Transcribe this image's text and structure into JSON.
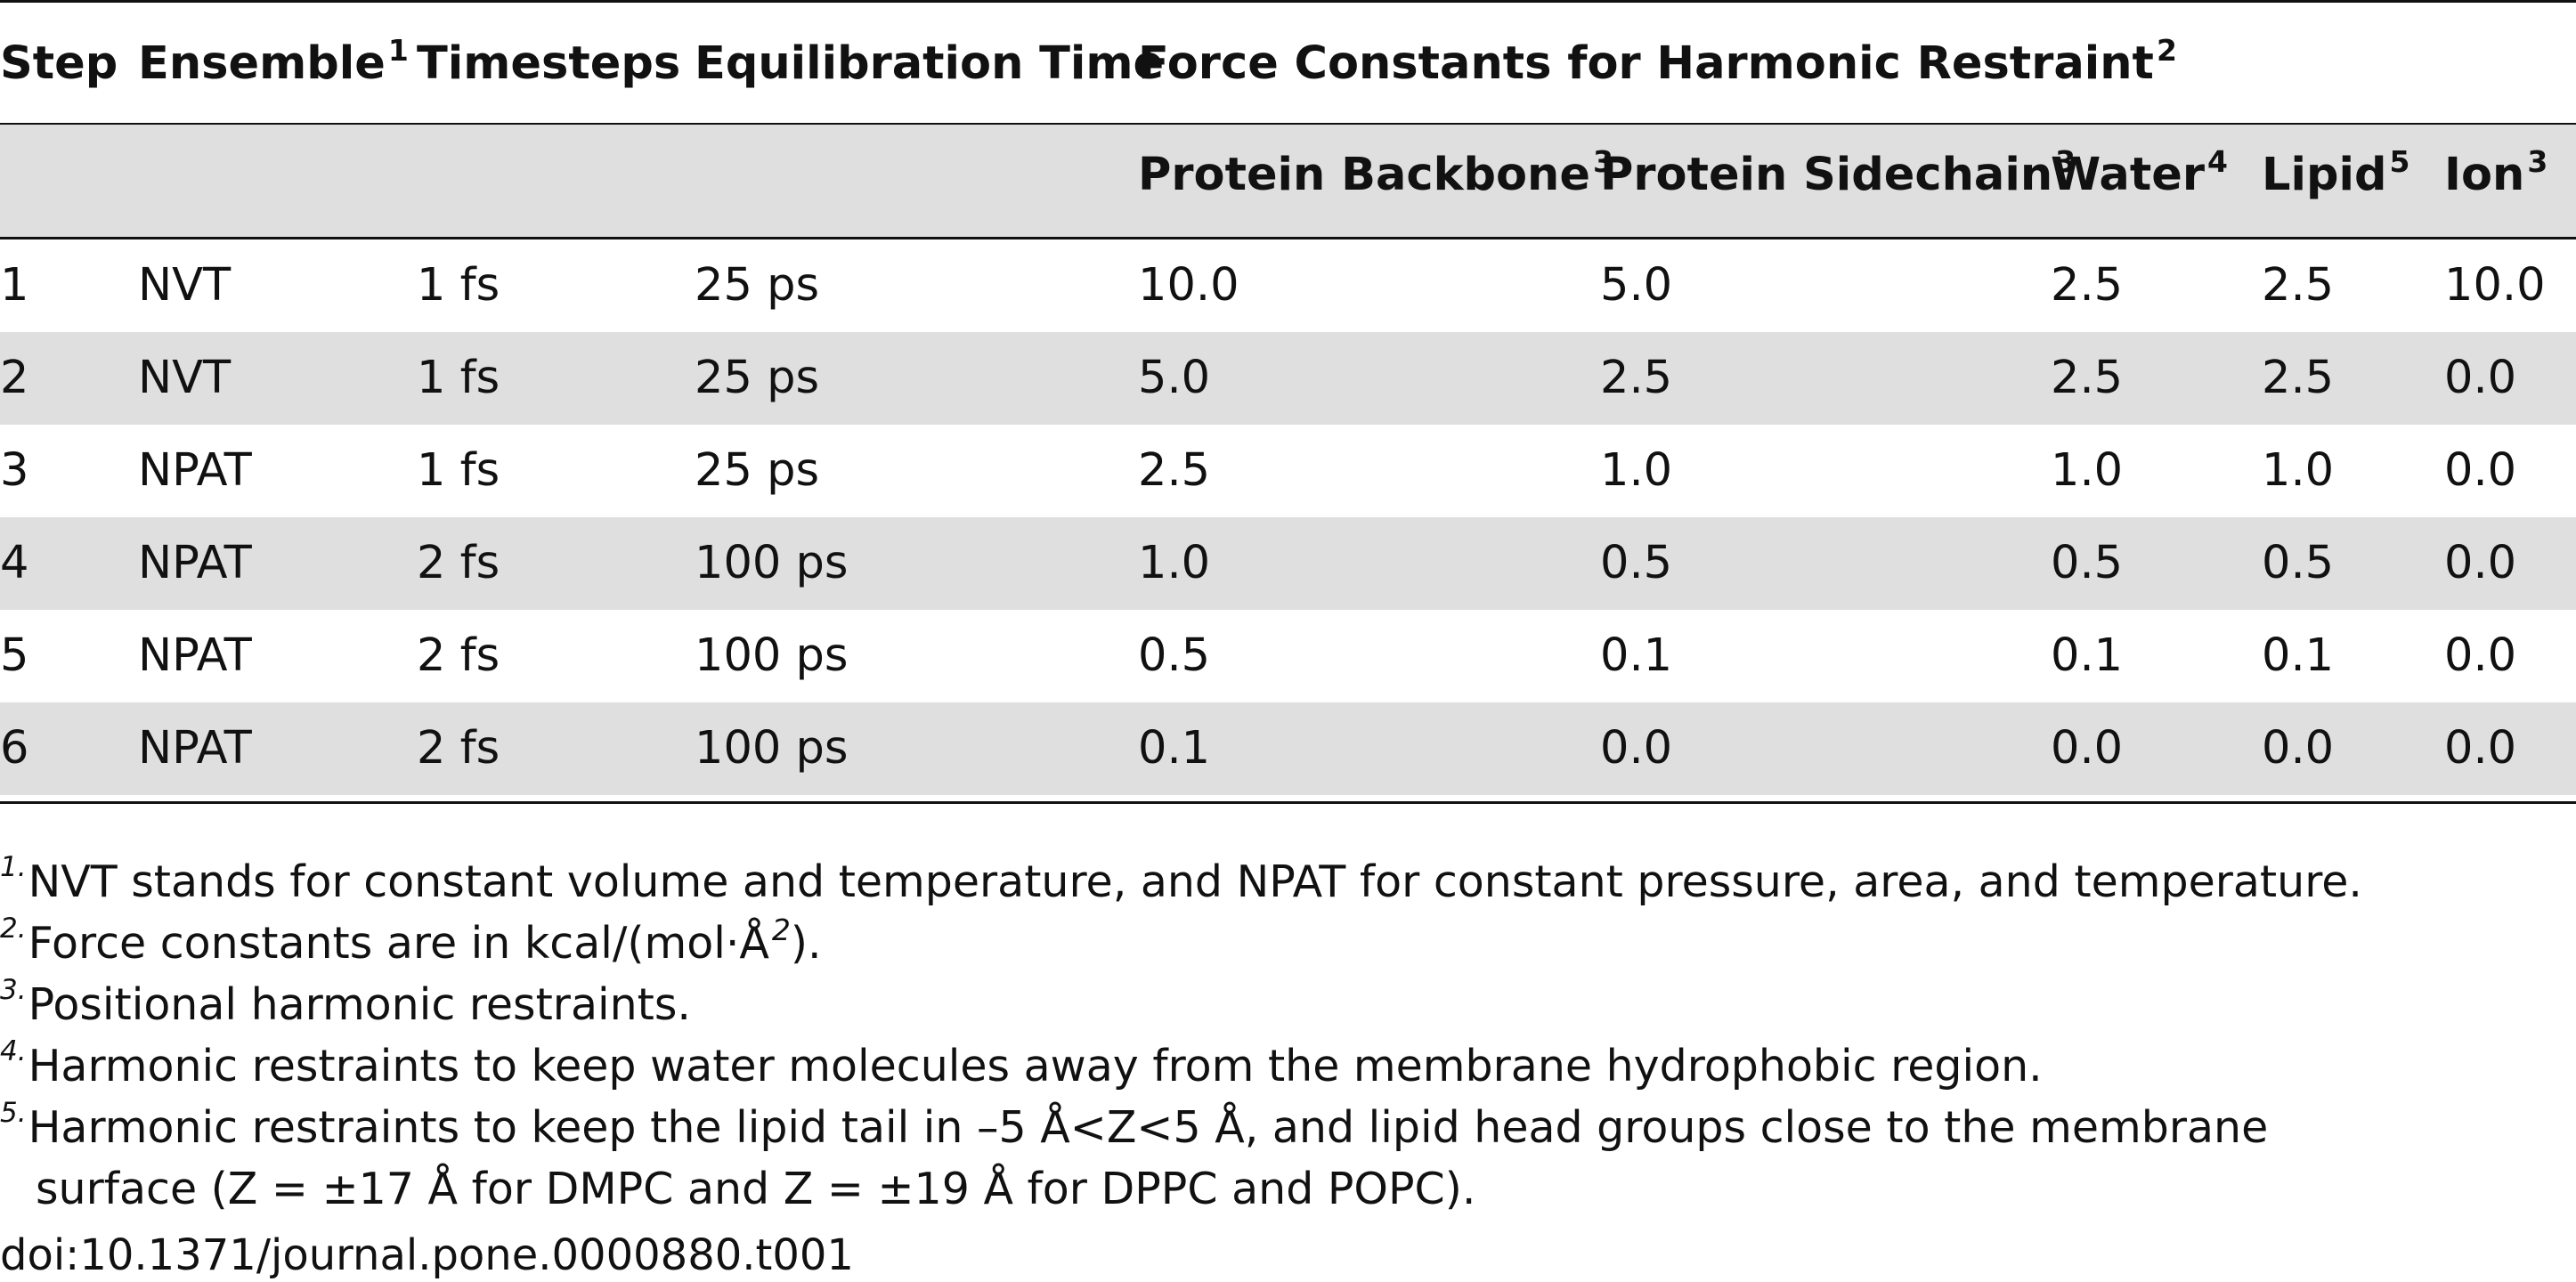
{
  "table": {
    "header_row1": [
      {
        "label": "Step",
        "sup": ""
      },
      {
        "label": "Ensemble",
        "sup": "1"
      },
      {
        "label": "Timesteps",
        "sup": ""
      },
      {
        "label": "Equilibration Time",
        "sup": ""
      },
      {
        "label": "Force Constants for Harmonic Restraint",
        "sup": "2"
      }
    ],
    "header_row2": [
      {
        "label": "Protein Backbone",
        "sup": "3"
      },
      {
        "label": "Protein Sidechain",
        "sup": "3"
      },
      {
        "label": "Water",
        "sup": "4"
      },
      {
        "label": "Lipid",
        "sup": "5"
      },
      {
        "label": "Ion",
        "sup": "3"
      }
    ],
    "rows": [
      [
        "1",
        "NVT",
        "1 fs",
        "25 ps",
        "10.0",
        "5.0",
        "2.5",
        "2.5",
        "10.0"
      ],
      [
        "2",
        "NVT",
        "1 fs",
        "25 ps",
        "5.0",
        "2.5",
        "2.5",
        "2.5",
        "0.0"
      ],
      [
        "3",
        "NPAT",
        "1 fs",
        "25 ps",
        "2.5",
        "1.0",
        "1.0",
        "1.0",
        "0.0"
      ],
      [
        "4",
        "NPAT",
        "2 fs",
        "100 ps",
        "1.0",
        "0.5",
        "0.5",
        "0.5",
        "0.0"
      ],
      [
        "5",
        "NPAT",
        "2 fs",
        "100 ps",
        "0.5",
        "0.1",
        "0.1",
        "0.1",
        "0.0"
      ],
      [
        "6",
        "NPAT",
        "2 fs",
        "100 ps",
        "0.1",
        "0.0",
        "0.0",
        "0.0",
        "0.0"
      ]
    ],
    "band_color": "#dfdfdf"
  },
  "footnotes": [
    {
      "marker": "1.",
      "text": "NVT stands for constant volume and temperature, and NPAT for constant pressure, area, and temperature."
    },
    {
      "marker": "2.",
      "text": "Force constants are in kcal/(mol·Å",
      "sup": "2",
      "tail": ")."
    },
    {
      "marker": "3.",
      "text": "Positional harmonic restraints."
    },
    {
      "marker": "4.",
      "text": "Harmonic restraints to keep water molecules away from the membrane hydrophobic region."
    },
    {
      "marker": "5.",
      "text": "Harmonic restraints to keep the lipid tail in –5 Å<Z<5 Å, and lipid head groups close to the membrane",
      "continuation": "surface (Z = ±17 Å for DMPC and Z = ±19 Å for DPPC and POPC)."
    }
  ],
  "doi": "doi:10.1371/journal.pone.0000880.t001"
}
